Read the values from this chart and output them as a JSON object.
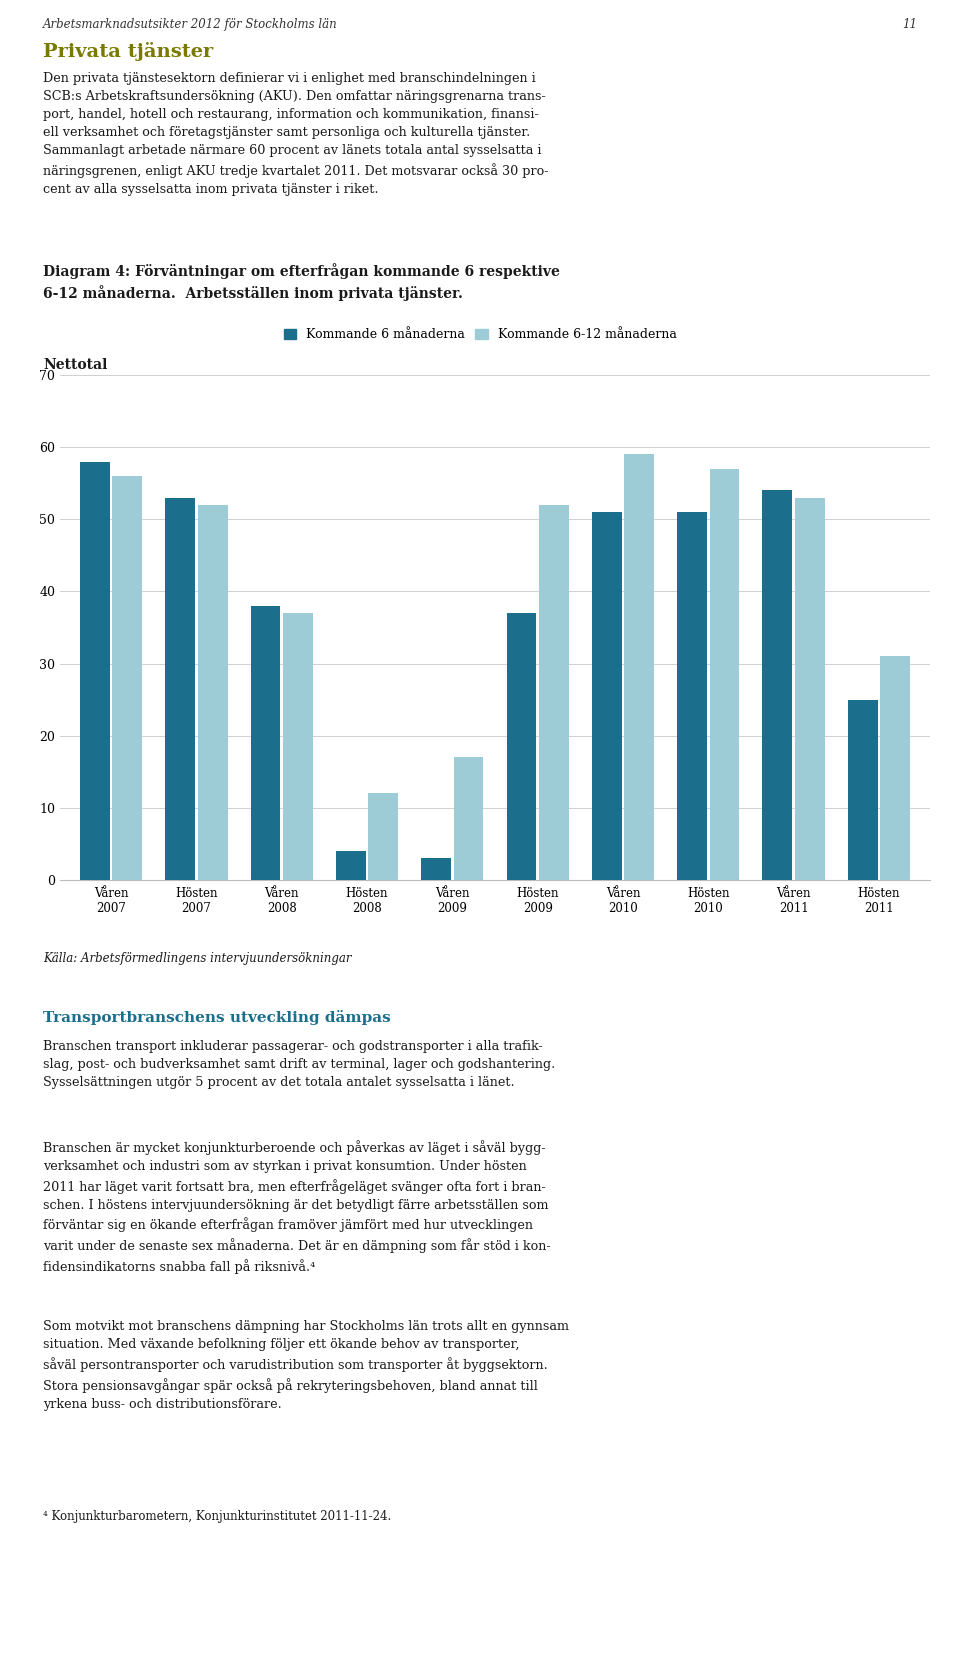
{
  "title_line1": "Diagram 4: Förväntningar om efterfrågan kommande 6 respektive",
  "title_line2": "6-12 månaderna.  Arbetsställen inom privata tjänster.",
  "ylabel": "Nettotal",
  "header": "Arbetsmarknadsutsikter 2012 för Stockholms län",
  "page_number": "11",
  "categories": [
    "Våren\n2007",
    "Hösten\n2007",
    "Våren\n2008",
    "Hösten\n2008",
    "Våren\n2009",
    "Hösten\n2009",
    "Våren\n2010",
    "Hösten\n2010",
    "Våren\n2011",
    "Hösten\n2011"
  ],
  "series1_label": "Kommande 6 månaderna",
  "series2_label": "Kommande 6-12 månaderna",
  "series1_color": "#1b6e8c",
  "series2_color": "#9eccd6",
  "series1_values": [
    58,
    53,
    38,
    4,
    3,
    37,
    51,
    51,
    54,
    25
  ],
  "series2_values": [
    56,
    52,
    37,
    12,
    17,
    52,
    59,
    57,
    53,
    31
  ],
  "ylim": [
    0,
    70
  ],
  "yticks": [
    0,
    10,
    20,
    30,
    40,
    50,
    60,
    70
  ],
  "background_color": "#ffffff",
  "grid_color": "#d0d0d0",
  "text_color": "#1a1a1a",
  "source_text": "Källa: Arbetsförmedlingens intervjuundersökningar",
  "heading_color": "#7a7a00",
  "transport_color": "#1b6e8c",
  "footnote": "⁴ Konjunkturbarometern, Konjunkturinstitutet 2011-11-24."
}
